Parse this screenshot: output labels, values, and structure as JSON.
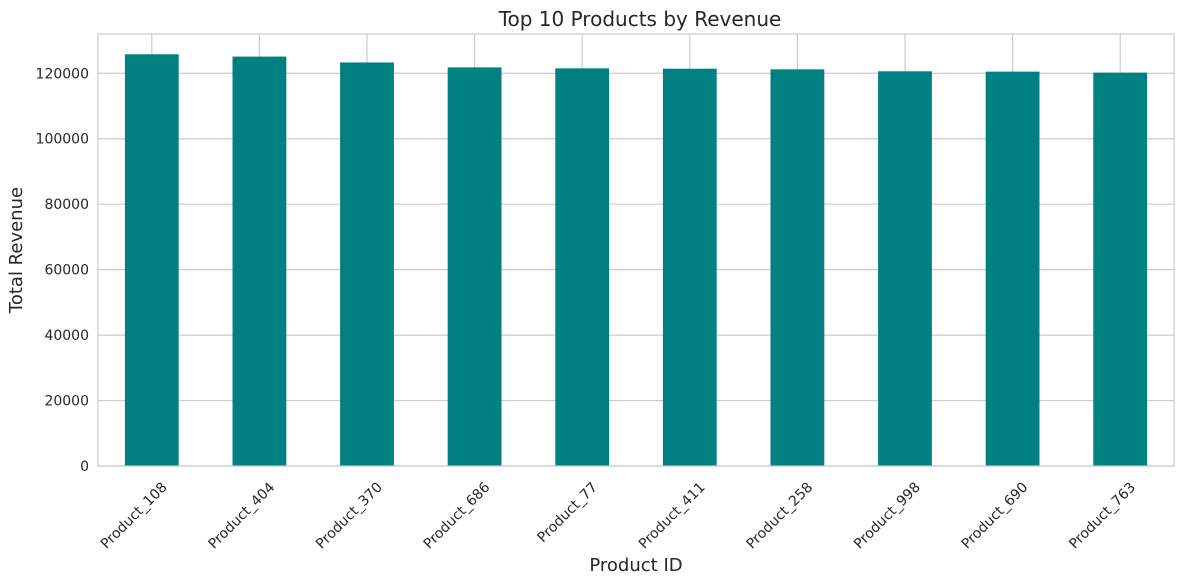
{
  "chart_data": {
    "type": "bar",
    "title": "Top 10 Products by Revenue",
    "xlabel": "Product ID",
    "ylabel": "Total Revenue",
    "categories": [
      "Product_108",
      "Product_404",
      "Product_370",
      "Product_686",
      "Product_77",
      "Product_411",
      "Product_258",
      "Product_998",
      "Product_690",
      "Product_763"
    ],
    "values": [
      125800,
      125100,
      123300,
      121800,
      121500,
      121400,
      121200,
      120600,
      120500,
      120200
    ],
    "ylim": [
      0,
      132000
    ],
    "yticks": [
      0,
      20000,
      40000,
      60000,
      80000,
      100000,
      120000
    ],
    "ytick_labels": [
      "0",
      "20000",
      "40000",
      "60000",
      "80000",
      "100000",
      "120000"
    ],
    "bar_color": "#008080",
    "grid": true,
    "legend": "none",
    "xtick_rotation": 45
  }
}
